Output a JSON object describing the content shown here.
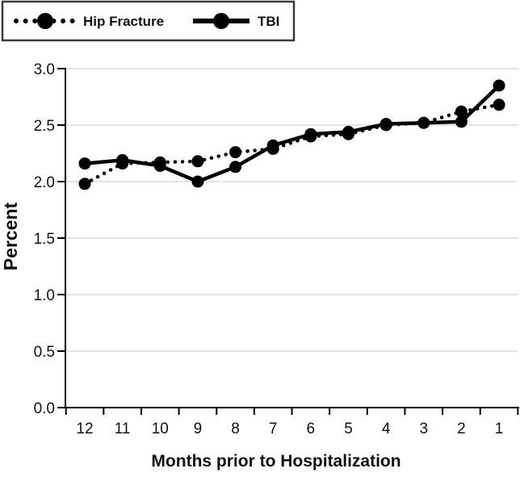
{
  "chart_data": {
    "type": "line",
    "title": "",
    "xlabel": "Months prior to Hospitalization",
    "ylabel": "Percent",
    "x_categories": [
      "12",
      "11",
      "10",
      "9",
      "8",
      "7",
      "6",
      "5",
      "4",
      "3",
      "2",
      "1"
    ],
    "y_ticks": [
      "0.0",
      "0.5",
      "1.0",
      "1.5",
      "2.0",
      "2.5",
      "3.0"
    ],
    "ylim": [
      0.0,
      3.0
    ],
    "grid": "horizontal-only",
    "legend_position": "top-left",
    "series": [
      {
        "name": "Hip Fracture",
        "style": "dotted",
        "marker": "circle",
        "color": "#000000",
        "values": [
          1.98,
          2.16,
          2.17,
          2.18,
          2.26,
          2.29,
          2.4,
          2.42,
          2.5,
          2.52,
          2.62,
          2.68
        ]
      },
      {
        "name": "TBI",
        "style": "solid",
        "marker": "circle",
        "color": "#000000",
        "values": [
          2.16,
          2.19,
          2.14,
          2.0,
          2.13,
          2.32,
          2.42,
          2.44,
          2.51,
          2.52,
          2.53,
          2.85
        ]
      }
    ],
    "colors": {
      "series": "#000000",
      "gridline": "#c9c9c9",
      "axis": "#000000",
      "background": "#ffffff"
    }
  }
}
